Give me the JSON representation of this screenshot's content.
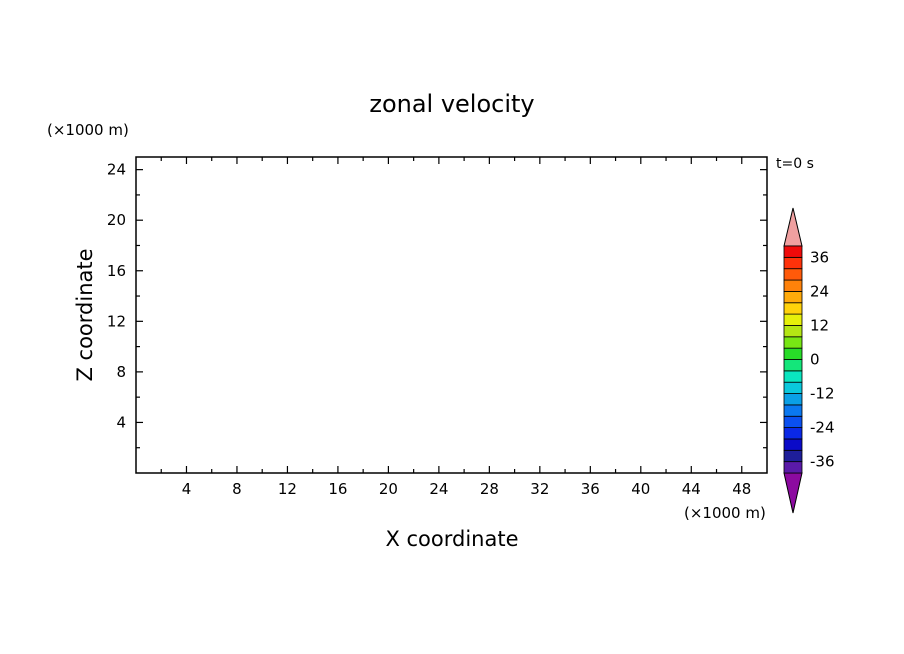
{
  "chart_data": {
    "type": "heatmap",
    "title": "zonal velocity",
    "xlabel": "X coordinate",
    "ylabel": "Z coordinate",
    "x_unit": "(×1000 m)",
    "y_unit": "(×1000 m)",
    "time_label": "t=0 s",
    "xlim": [
      0,
      50
    ],
    "ylim": [
      0,
      25
    ],
    "xticks": [
      4,
      8,
      12,
      16,
      20,
      24,
      28,
      32,
      36,
      40,
      44,
      48
    ],
    "yticks": [
      4,
      8,
      12,
      16,
      20,
      24
    ],
    "grid": false,
    "colorbar": {
      "levels": [
        -40,
        -36,
        -32,
        -28,
        -24,
        -20,
        -16,
        -12,
        -8,
        -4,
        0,
        4,
        8,
        12,
        16,
        20,
        24,
        28,
        32,
        36,
        40
      ],
      "labels": [
        36,
        24,
        12,
        0,
        -12,
        -24,
        -36
      ],
      "colors": [
        "#5a1aa8",
        "#1e1e9a",
        "#0a0ac8",
        "#0a28e6",
        "#0a50f0",
        "#0a78f0",
        "#0aa0e6",
        "#0ac8dc",
        "#0ae6c0",
        "#14e67a",
        "#28dc28",
        "#78e614",
        "#b4e614",
        "#e6f00a",
        "#ffd20a",
        "#ffaa0a",
        "#ff820a",
        "#ff5a0a",
        "#ff320a",
        "#f00a0a"
      ],
      "over_color": "#f0a0a0",
      "under_color": "#8c0aa0"
    }
  }
}
